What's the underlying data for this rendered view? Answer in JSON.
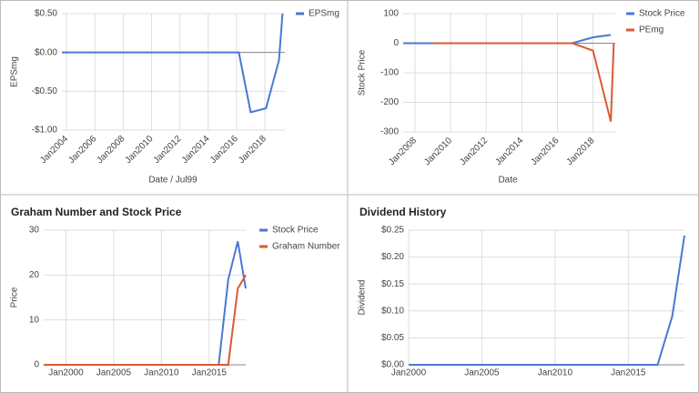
{
  "chart_data": [
    {
      "type": "line",
      "y_label": "EPSmg",
      "x_label": "Date / Jul99",
      "x": [
        "2003-09",
        "2016-03",
        "2017-01",
        "2018-02",
        "2019-01",
        "2019-04"
      ],
      "series": [
        {
          "name": "EPSmg",
          "color": "#4a78d4",
          "values": [
            0,
            0,
            -0.77,
            -0.72,
            -0.1,
            0.5
          ]
        }
      ],
      "xlim": [
        "2003-09",
        "2019-06"
      ],
      "ylim": [
        -1,
        0.5
      ],
      "xticks": [
        {
          "value": "2004-01",
          "label": "Jan2004"
        },
        {
          "value": "2006-01",
          "label": "Jan2006"
        },
        {
          "value": "2008-01",
          "label": "Jan2008"
        },
        {
          "value": "2010-01",
          "label": "Jan2010"
        },
        {
          "value": "2012-01",
          "label": "Jan2012"
        },
        {
          "value": "2014-01",
          "label": "Jan2014"
        },
        {
          "value": "2016-01",
          "label": "Jan2016"
        },
        {
          "value": "2018-01",
          "label": "Jan2018"
        }
      ],
      "yticks": [
        {
          "value": 0.5,
          "label": "$0.50"
        },
        {
          "value": 0,
          "label": "$0.00"
        },
        {
          "value": -0.5,
          "label": "-$0.50"
        },
        {
          "value": -1,
          "label": "-$1.00"
        }
      ],
      "grid": true,
      "legend": "right"
    },
    {
      "type": "line",
      "y_label": "Stock Price",
      "x_label": "Date",
      "x": [
        "2007-05",
        "2009-01",
        "2016-11",
        "2018-01",
        "2019-01",
        "2019-03",
        "2019-04"
      ],
      "series": [
        {
          "name": "Stock Price",
          "color": "#4a78d4",
          "values": [
            0,
            0,
            0,
            20,
            28,
            null,
            -5
          ]
        },
        {
          "name": "PEmg",
          "color": "#dc5a32",
          "values": [
            null,
            0,
            0,
            -25,
            -265,
            0,
            null
          ]
        }
      ],
      "xlim": [
        "2007-05",
        "2019-04"
      ],
      "ylim": [
        -300,
        100
      ],
      "xticks": [
        {
          "value": "2008-01",
          "label": "Jan2008"
        },
        {
          "value": "2010-01",
          "label": "Jan2010"
        },
        {
          "value": "2012-01",
          "label": "Jan2012"
        },
        {
          "value": "2014-01",
          "label": "Jan2014"
        },
        {
          "value": "2016-01",
          "label": "Jan2016"
        },
        {
          "value": "2018-01",
          "label": "Jan2018"
        }
      ],
      "yticks": [
        100,
        0,
        -100,
        -200,
        -300
      ],
      "grid": true,
      "legend": "right"
    },
    {
      "type": "line",
      "title": "Graham Number and Stock Price",
      "y_label": "Price",
      "x": [
        "1997-09",
        "2016-01",
        "2017-01",
        "2018-01",
        "2018-11"
      ],
      "series": [
        {
          "name": "Stock Price",
          "color": "#4a78d4",
          "values": [
            0,
            0,
            19,
            27.5,
            17
          ]
        },
        {
          "name": "Graham Number",
          "color": "#dc5a32",
          "values": [
            0,
            0,
            0,
            17,
            20
          ]
        }
      ],
      "xlim": [
        "1997-09",
        "2018-11"
      ],
      "ylim": [
        0,
        30
      ],
      "xticks": [
        {
          "value": "2000-01",
          "label": "Jan2000"
        },
        {
          "value": "2005-01",
          "label": "Jan2005"
        },
        {
          "value": "2010-01",
          "label": "Jan2010"
        },
        {
          "value": "2015-01",
          "label": "Jan2015"
        }
      ],
      "yticks": [
        0,
        10,
        20,
        30
      ],
      "grid": true,
      "legend": "right"
    },
    {
      "type": "line",
      "title": "Dividend History",
      "y_label": "Dividend",
      "x": [
        "2000-01",
        "2017-01",
        "2018-01",
        "2018-11"
      ],
      "values": [
        0,
        0,
        0.09,
        0.24
      ],
      "color": "#4a78d4",
      "xlim": [
        "2000-01",
        "2018-11"
      ],
      "ylim": [
        0,
        0.25
      ],
      "xticks": [
        {
          "value": "2000-01",
          "label": "Jan2000"
        },
        {
          "value": "2005-01",
          "label": "Jan2005"
        },
        {
          "value": "2010-01",
          "label": "Jan2010"
        },
        {
          "value": "2015-01",
          "label": "Jan2015"
        }
      ],
      "yticks": [
        {
          "value": 0,
          "label": "$0.00"
        },
        {
          "value": 0.05,
          "label": "$0.05"
        },
        {
          "value": 0.1,
          "label": "$0.10"
        },
        {
          "value": 0.15,
          "label": "$0.15"
        },
        {
          "value": 0.2,
          "label": "$0.20"
        },
        {
          "value": 0.25,
          "label": "$0.25"
        }
      ],
      "grid": true
    }
  ]
}
